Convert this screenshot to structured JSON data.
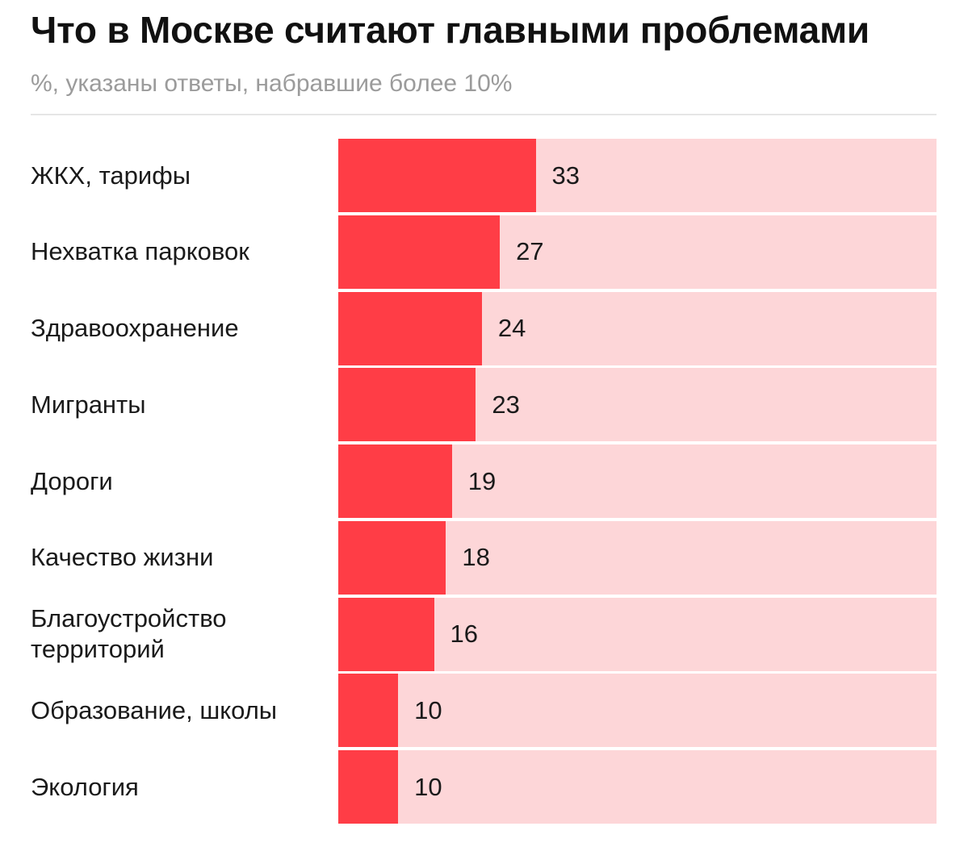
{
  "chart_data": {
    "type": "bar",
    "orientation": "horizontal",
    "title": "Что в Москве считают главными проблемами",
    "subtitle": "%, указаны ответы, набравшие более 10%",
    "categories": [
      "ЖКХ, тарифы",
      "Нехватка парковок",
      "Здравоохранение",
      "Мигранты",
      "Дороги",
      "Качество жизни",
      "Благоустройство территорий",
      "Образование, школы",
      "Экология"
    ],
    "values": [
      33,
      27,
      24,
      23,
      19,
      18,
      16,
      10,
      10
    ],
    "xlim": [
      0,
      100
    ],
    "grid": false,
    "legend": "none",
    "colors": {
      "bar": "#ff3d46",
      "track": "#fdd6d8",
      "rule": "#e6e6e6",
      "subtitle": "#9b9b9b"
    }
  }
}
